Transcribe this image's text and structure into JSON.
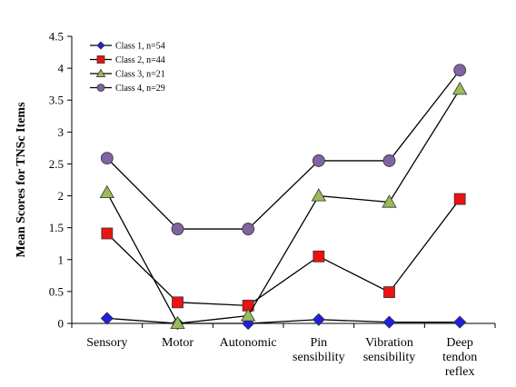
{
  "chart_data": {
    "type": "line",
    "title": "",
    "xlabel": "",
    "ylabel": "Mean Scores for TNSc Items",
    "categories": [
      [
        "Sensory"
      ],
      [
        "Motor"
      ],
      [
        "Autonomic"
      ],
      [
        "Pin",
        "sensibility"
      ],
      [
        "Vibration",
        "sensibility"
      ],
      [
        "Deep",
        "tendon",
        "reflex"
      ]
    ],
    "ylim": [
      0,
      4.5
    ],
    "yticks": [
      "0",
      "0.5",
      "1",
      "1.5",
      "2",
      "2.5",
      "3",
      "3.5",
      "4",
      "4.5"
    ],
    "grid": false,
    "legend_position": "top-left",
    "series": [
      {
        "name": "Class 1, n=54",
        "marker": "diamond",
        "color": "#1f1fe0",
        "values": [
          0.08,
          0.0,
          0.0,
          0.06,
          0.02,
          0.02
        ]
      },
      {
        "name": "Class 2, n=44",
        "marker": "square",
        "color": "#ee1111",
        "values": [
          1.41,
          0.33,
          0.28,
          1.05,
          0.49,
          1.95
        ]
      },
      {
        "name": "Class 3, n=21",
        "marker": "triangle",
        "color": "#9bbb59",
        "values": [
          2.05,
          0.0,
          0.12,
          2.0,
          1.9,
          3.67
        ]
      },
      {
        "name": "Class 4, n=29",
        "marker": "circle",
        "color": "#8064a2",
        "values": [
          2.59,
          1.48,
          1.48,
          2.55,
          2.55,
          3.97
        ]
      }
    ]
  }
}
